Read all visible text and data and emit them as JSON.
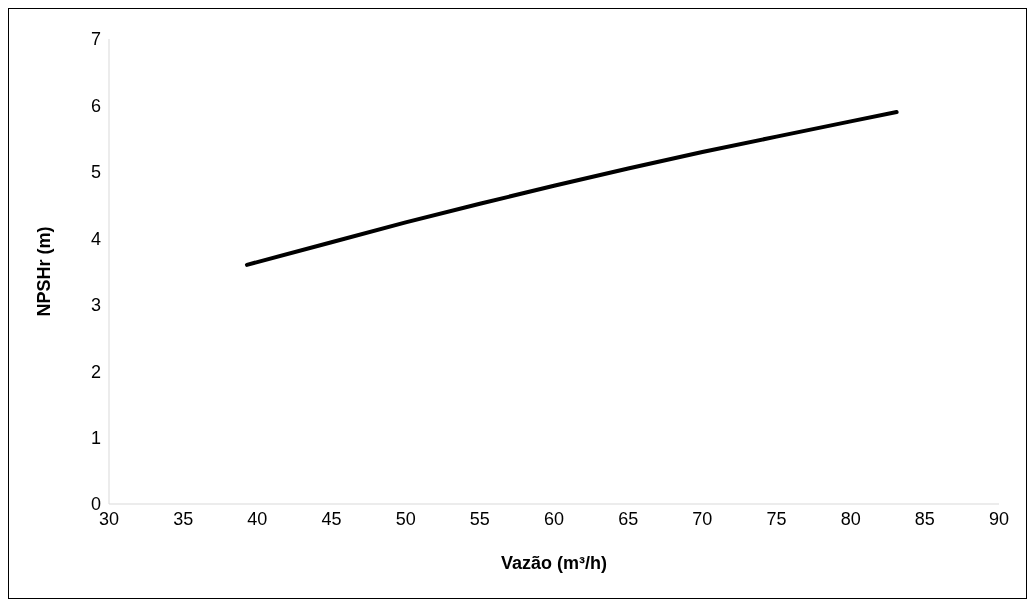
{
  "chart_data": {
    "type": "line",
    "xlabel": "Vazão (m³/h)",
    "ylabel": "NPSHr (m)",
    "x": [
      39.3,
      45,
      50,
      55,
      60,
      65,
      70,
      75,
      80,
      83.1
    ],
    "series": [
      {
        "color": "#000000",
        "values": [
          3.6,
          3.94,
          4.24,
          4.52,
          4.79,
          5.05,
          5.3,
          5.53,
          5.76,
          5.9
        ]
      }
    ],
    "xlim": [
      30,
      90
    ],
    "xticks": [
      30,
      35,
      40,
      45,
      50,
      55,
      60,
      65,
      70,
      75,
      80,
      85,
      90
    ],
    "ylim": [
      0,
      7
    ],
    "yticks": [
      0,
      1,
      2,
      3,
      4,
      5,
      6,
      7
    ],
    "grid": false,
    "legend": false,
    "marker": "none",
    "line_style": "solid"
  }
}
